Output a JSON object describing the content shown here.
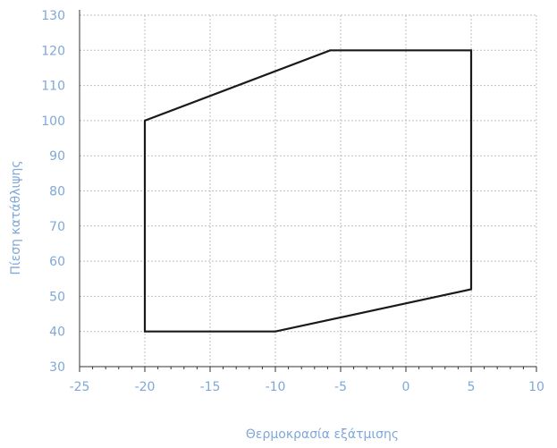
{
  "chart_data": {
    "type": "line",
    "title": "",
    "xlabel": "Θερμοκρασία εξάτμισης",
    "ylabel": "Πίεση κατάθλιψης",
    "xlim": [
      -25,
      10
    ],
    "ylim": [
      30,
      130
    ],
    "x_ticks": [
      "-25",
      "-20",
      "-15",
      "-10",
      "-5",
      "0",
      "5",
      "10"
    ],
    "y_ticks": [
      "30",
      "40",
      "50",
      "60",
      "70",
      "80",
      "90",
      "100",
      "110",
      "120",
      "130"
    ],
    "grid": true,
    "legend": "none",
    "series": [
      {
        "points": [
          {
            "x": -20,
            "y": 100
          },
          {
            "x": -5.8,
            "y": 120
          },
          {
            "x": 5,
            "y": 120
          },
          {
            "x": 5,
            "y": 52
          },
          {
            "x": -10,
            "y": 40
          },
          {
            "x": -20,
            "y": 40
          },
          {
            "x": -20,
            "y": 100
          }
        ]
      }
    ]
  },
  "style": {
    "axis_color": "#333333",
    "grid_color": "#bfbfbf",
    "label_color": "#7fa8d8",
    "series_color": "#1a1a1a"
  }
}
